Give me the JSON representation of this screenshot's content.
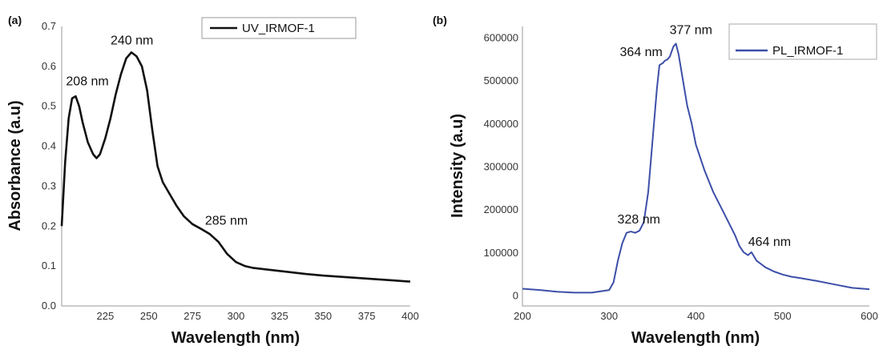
{
  "chart_data": [
    {
      "type": "line",
      "panel_label": "(a)",
      "xlabel": "Wavelength (nm)",
      "ylabel": "Absorbance (a.u)",
      "xlim": [
        200,
        400
      ],
      "ylim": [
        0,
        0.7
      ],
      "x_ticks": [
        "225",
        "250",
        "275",
        "300",
        "325",
        "350",
        "375",
        "400"
      ],
      "y_ticks": [
        "0.0",
        "0.1",
        "0.2",
        "0.3",
        "0.4",
        "0.5",
        "0.6",
        "0.7"
      ],
      "legend_position": "top-right",
      "grid": false,
      "series": [
        {
          "name": "UV_IRMOF-1",
          "color": "#111111",
          "x": [
            200,
            202,
            204,
            206,
            208,
            210,
            212,
            215,
            218,
            220,
            222,
            225,
            228,
            231,
            234,
            237,
            240,
            243,
            246,
            249,
            252,
            255,
            258,
            262,
            266,
            270,
            275,
            280,
            285,
            290,
            295,
            300,
            305,
            310,
            320,
            330,
            340,
            350,
            360,
            370,
            380,
            390,
            400
          ],
          "y": [
            0.2,
            0.36,
            0.47,
            0.52,
            0.525,
            0.5,
            0.46,
            0.41,
            0.38,
            0.37,
            0.38,
            0.42,
            0.47,
            0.53,
            0.58,
            0.62,
            0.635,
            0.625,
            0.6,
            0.54,
            0.44,
            0.35,
            0.31,
            0.28,
            0.25,
            0.225,
            0.205,
            0.193,
            0.18,
            0.16,
            0.13,
            0.11,
            0.1,
            0.095,
            0.09,
            0.085,
            0.08,
            0.076,
            0.073,
            0.07,
            0.067,
            0.064,
            0.061
          ]
        }
      ],
      "annotations": [
        {
          "text": "208 nm",
          "x": 208,
          "y": 0.525
        },
        {
          "text": "240 nm",
          "x": 240,
          "y": 0.635
        },
        {
          "text": "285 nm",
          "x": 285,
          "y": 0.18
        }
      ]
    },
    {
      "type": "line",
      "panel_label": "(b)",
      "xlabel": "Wavelength (nm)",
      "ylabel": "Intensity (a.u)",
      "xlim": [
        200,
        600
      ],
      "ylim": [
        -25000,
        625000
      ],
      "x_ticks": [
        "200",
        "300",
        "400",
        "500",
        "600"
      ],
      "y_ticks": [
        "0",
        "100000",
        "200000",
        "300000",
        "400000",
        "500000",
        "600000"
      ],
      "legend_position": "top-right",
      "grid": false,
      "series": [
        {
          "name": "PL_IRMOF-1",
          "color": "#3d4fa8",
          "x": [
            200,
            220,
            240,
            260,
            280,
            300,
            305,
            310,
            315,
            320,
            325,
            330,
            335,
            340,
            345,
            350,
            355,
            358,
            362,
            364,
            367,
            370,
            374,
            377,
            380,
            385,
            390,
            395,
            400,
            410,
            420,
            430,
            440,
            445,
            450,
            455,
            460,
            464,
            470,
            480,
            490,
            500,
            510,
            520,
            540,
            560,
            580,
            600
          ],
          "y": [
            15000,
            12000,
            8000,
            6000,
            6000,
            12000,
            30000,
            80000,
            120000,
            145000,
            148000,
            145000,
            150000,
            170000,
            240000,
            360000,
            480000,
            535000,
            540000,
            545000,
            548000,
            555000,
            578000,
            585000,
            560000,
            500000,
            440000,
            400000,
            350000,
            290000,
            240000,
            200000,
            160000,
            140000,
            115000,
            100000,
            93000,
            100000,
            80000,
            65000,
            55000,
            48000,
            43000,
            40000,
            33000,
            25000,
            17000,
            14000
          ]
        }
      ],
      "annotations": [
        {
          "text": "328 nm",
          "x": 328,
          "y": 148000
        },
        {
          "text": "364 nm",
          "x": 364,
          "y": 545000
        },
        {
          "text": "377 nm",
          "x": 377,
          "y": 585000
        },
        {
          "text": "464 nm",
          "x": 464,
          "y": 100000
        }
      ]
    }
  ]
}
